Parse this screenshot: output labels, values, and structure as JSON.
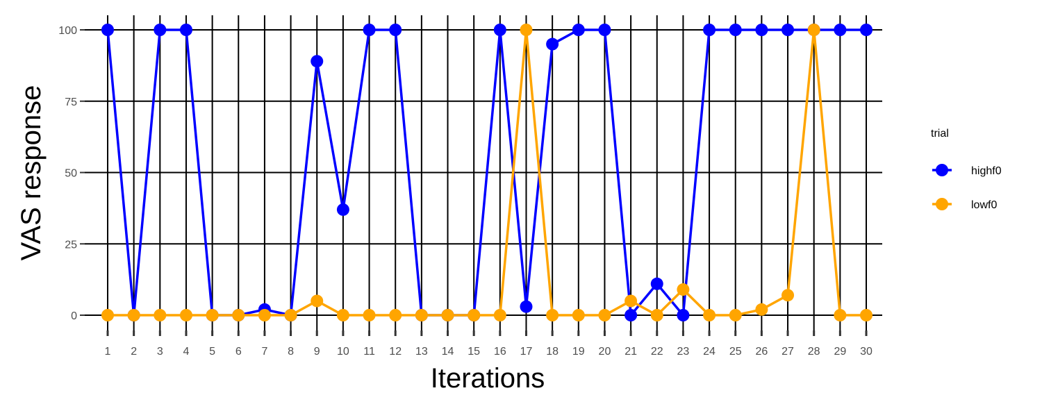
{
  "chart_data": {
    "type": "line",
    "title": "",
    "xlabel": "Iterations",
    "ylabel": "VAS response",
    "x": [
      1,
      2,
      3,
      4,
      5,
      6,
      7,
      8,
      9,
      10,
      11,
      12,
      13,
      14,
      15,
      16,
      17,
      18,
      19,
      20,
      21,
      22,
      23,
      24,
      25,
      26,
      27,
      28,
      29,
      30
    ],
    "xlim": [
      1,
      30
    ],
    "ylim": [
      0,
      100
    ],
    "yticks": [
      0,
      25,
      50,
      75,
      100
    ],
    "grid": true,
    "legend": {
      "title": "trial",
      "position": "right"
    },
    "series": [
      {
        "name": "highf0",
        "color": "#0000ff",
        "values": [
          100,
          0,
          100,
          100,
          0,
          0,
          2,
          0,
          89,
          37,
          100,
          100,
          0,
          0,
          0,
          100,
          3,
          95,
          100,
          100,
          0,
          11,
          0,
          100,
          100,
          100,
          100,
          100,
          100,
          100
        ]
      },
      {
        "name": "lowf0",
        "color": "#ffa500",
        "values": [
          0,
          0,
          0,
          0,
          0,
          0,
          0,
          0,
          5,
          0,
          0,
          0,
          0,
          0,
          0,
          0,
          100,
          0,
          0,
          0,
          5,
          0,
          9,
          0,
          0,
          2,
          7,
          100,
          0,
          0
        ]
      }
    ]
  }
}
